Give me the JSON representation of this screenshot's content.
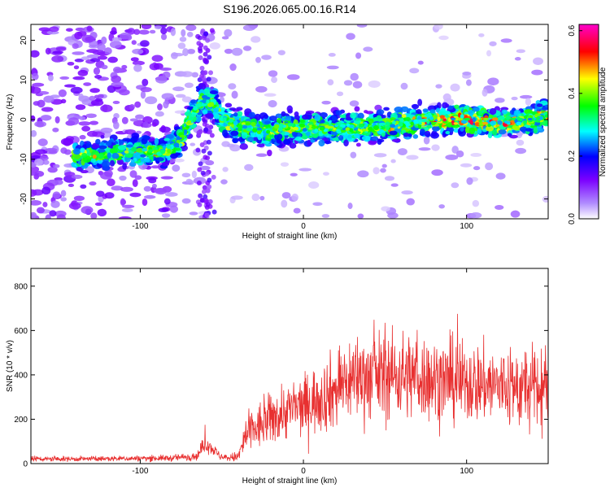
{
  "chart_data": [
    {
      "type": "heatmap",
      "title": "S196.2026.065.00.16.R14",
      "xlabel": "Height of straight line (km)",
      "ylabel": "Frequency (Hz)",
      "xlim": [
        -167,
        150
      ],
      "ylim": [
        -25,
        24
      ],
      "xticks": [
        -100,
        0,
        100
      ],
      "yticks": [
        -20,
        -10,
        0,
        10,
        20
      ],
      "ridge": {
        "description": "Dominant frequency ridge (frequency in Hz vs height in km)",
        "x": [
          -167,
          -130,
          -110,
          -95,
          -85,
          -75,
          -68,
          -62,
          -55,
          -50,
          -45,
          -35,
          -20,
          -10,
          0,
          20,
          40,
          60,
          80,
          100,
          120,
          140,
          150
        ],
        "y": [
          -10,
          -9,
          -8,
          -8,
          -8,
          -5,
          1,
          5,
          4,
          0,
          -1,
          -2,
          -3,
          -2,
          -2,
          -2,
          -2,
          -1,
          0,
          0,
          -1,
          0,
          1
        ]
      },
      "colorbar": {
        "label": "Normalized spectral amplitude",
        "range": [
          0.0,
          0.62
        ],
        "ticks": [
          "0.0",
          "0.2",
          "0.4",
          "0.6"
        ],
        "colors": [
          "#ffffff",
          "#7b00ff",
          "#0000ff",
          "#00ffff",
          "#00ff00",
          "#ffff00",
          "#ff0000",
          "#ff00cc"
        ]
      }
    },
    {
      "type": "line",
      "title": "",
      "xlabel": "Height of straight line (km)",
      "ylabel": "SNR (10 * v/v)",
      "xlim": [
        -167,
        150
      ],
      "ylim": [
        0,
        880
      ],
      "xticks": [
        -100,
        0,
        100
      ],
      "yticks": [
        0,
        200,
        400,
        600,
        800
      ],
      "color": "#e83030",
      "envelope": {
        "x": [
          -167,
          -120,
          -80,
          -65,
          -60,
          -56,
          -50,
          -40,
          -35,
          -20,
          -10,
          0,
          10,
          20,
          30,
          60,
          90,
          110,
          130,
          150
        ],
        "mean": [
          20,
          22,
          25,
          35,
          95,
          70,
          25,
          30,
          130,
          200,
          240,
          260,
          300,
          330,
          390,
          400,
          370,
          360,
          340,
          330
        ],
        "spread": [
          12,
          12,
          15,
          20,
          45,
          30,
          15,
          25,
          100,
          120,
          130,
          140,
          160,
          180,
          200,
          200,
          190,
          180,
          190,
          200
        ]
      }
    }
  ]
}
